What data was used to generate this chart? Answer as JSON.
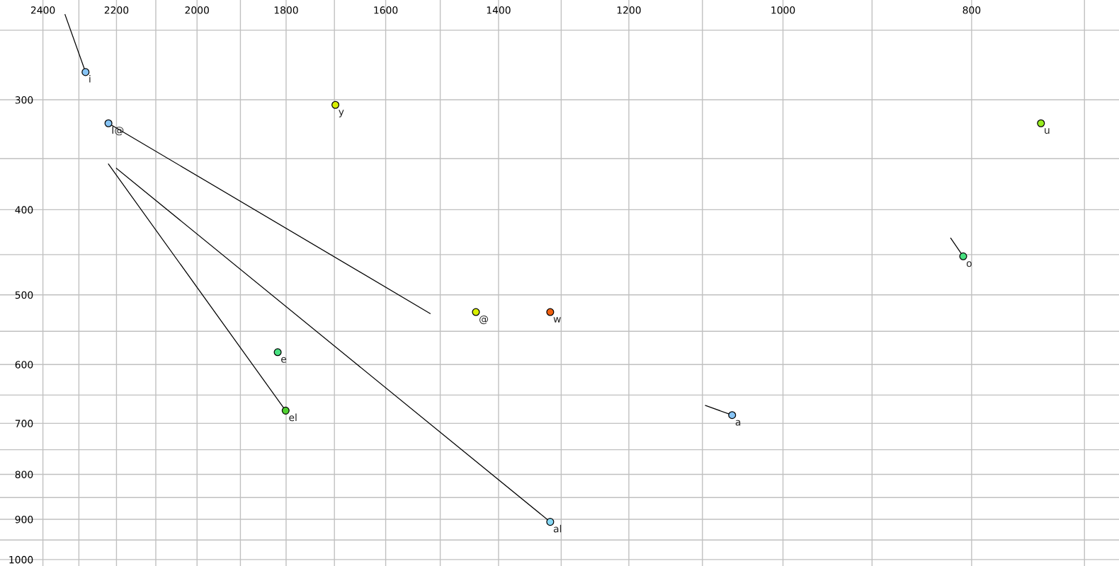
{
  "chart_data": {
    "type": "scatter",
    "log": "xy",
    "grid": true,
    "xlim": [
      2525,
      672
    ],
    "ylim": [
      1017,
      231
    ],
    "xticks": [
      2400,
      {
        "value": 2300,
        "label": null
      },
      2200,
      {
        "value": 2100,
        "label": null
      },
      2000,
      {
        "value": 1900,
        "label": null
      },
      1800,
      {
        "value": 1700,
        "label": null
      },
      1600,
      {
        "value": 1500,
        "label": null
      },
      1400,
      {
        "value": 1300,
        "label": null
      },
      1200,
      {
        "value": 1100,
        "label": null
      },
      1000,
      {
        "value": 900,
        "label": null
      },
      800,
      {
        "value": 700,
        "label": null
      }
    ],
    "yticks": [
      {
        "value": 250,
        "label": null
      },
      300,
      {
        "value": 350,
        "label": null
      },
      400,
      {
        "value": 450,
        "label": null
      },
      500,
      {
        "value": 550,
        "label": null
      },
      600,
      {
        "value": 650,
        "label": null
      },
      700,
      {
        "value": 750,
        "label": null
      },
      800,
      {
        "value": 850,
        "label": null
      },
      900,
      {
        "value": 950,
        "label": null
      },
      1000
    ],
    "series": [
      {
        "type": "line",
        "color": "#000000",
        "x": [
          2338,
          2282
        ],
        "values": [
          240,
          279
        ]
      },
      {
        "type": "line",
        "color": "#000000",
        "x": [
          2221,
          1518
        ],
        "values": [
          319,
          525
        ]
      },
      {
        "type": "line",
        "color": "#000000",
        "x": [
          2221,
          1801
        ],
        "values": [
          355,
          677
        ]
      },
      {
        "type": "line",
        "color": "#000000",
        "x": [
          2200,
          1317
        ],
        "values": [
          359,
          906
        ]
      },
      {
        "type": "line",
        "color": "#000000",
        "x": [
          820,
          808
        ],
        "values": [
          431,
          452
        ]
      },
      {
        "type": "line",
        "color": "#000000",
        "x": [
          1096,
          1062
        ],
        "values": [
          668,
          685
        ]
      },
      {
        "marker": "circle",
        "x": [
          2282,
          2221,
          1698,
          737,
          808,
          1438,
          1317,
          1818,
          1801,
          1317,
          1062
        ],
        "values": [
          279,
          319,
          304,
          319,
          452,
          523,
          523,
          581,
          677,
          906,
          685
        ],
        "colors": [
          "#87c4f5",
          "#87c4f5",
          "#d8f000",
          "#98ec20",
          "#48e080",
          "#d8f000",
          "#f06010",
          "#48e080",
          "#50d030",
          "#87d8f5",
          "#87c4f5"
        ],
        "value_labels": [
          "i",
          "I@",
          "y",
          "u",
          "o",
          "@",
          "w",
          "e",
          "el",
          "al",
          "a"
        ]
      }
    ]
  }
}
